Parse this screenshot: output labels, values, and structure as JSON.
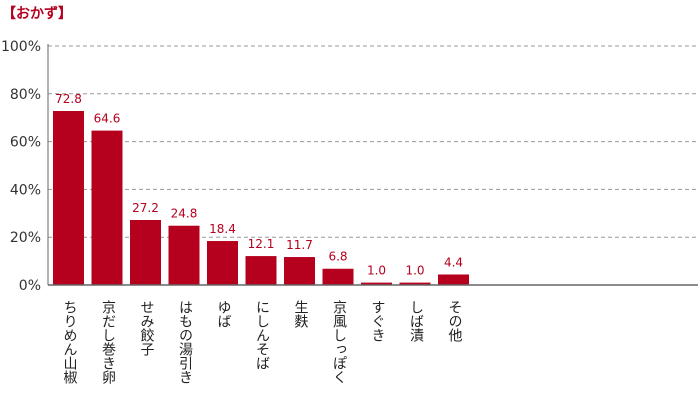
{
  "colors": {
    "bar": "#b5001e",
    "value_label": "#b5001e",
    "title": "#b5001e",
    "grid": "#999999",
    "axis": "#666666"
  },
  "chart_data": {
    "type": "bar",
    "title": "【おかず】",
    "xlabel": "",
    "ylabel": "",
    "ylim": [
      0,
      100
    ],
    "y_ticks": [
      "0%",
      "20%",
      "40%",
      "60%",
      "80%",
      "100%"
    ],
    "grid": true,
    "grid_style": "dashed",
    "legend": "none",
    "categories": [
      "ちりめん山椒",
      "京だし巻き卵",
      "せみ餃子",
      "はもの湯引き",
      "ゆば",
      "にしんそば",
      "生麩",
      "京風しっぽく",
      "すぐき",
      "しば漬",
      "その他"
    ],
    "values": [
      72.8,
      64.6,
      27.2,
      24.8,
      18.4,
      12.1,
      11.7,
      6.8,
      1.0,
      1.0,
      4.4
    ],
    "value_labels": [
      "72.8",
      "64.6",
      "27.2",
      "24.8",
      "18.4",
      "12.1",
      "11.7",
      "6.8",
      "1.0",
      "1.0",
      "4.4"
    ]
  }
}
